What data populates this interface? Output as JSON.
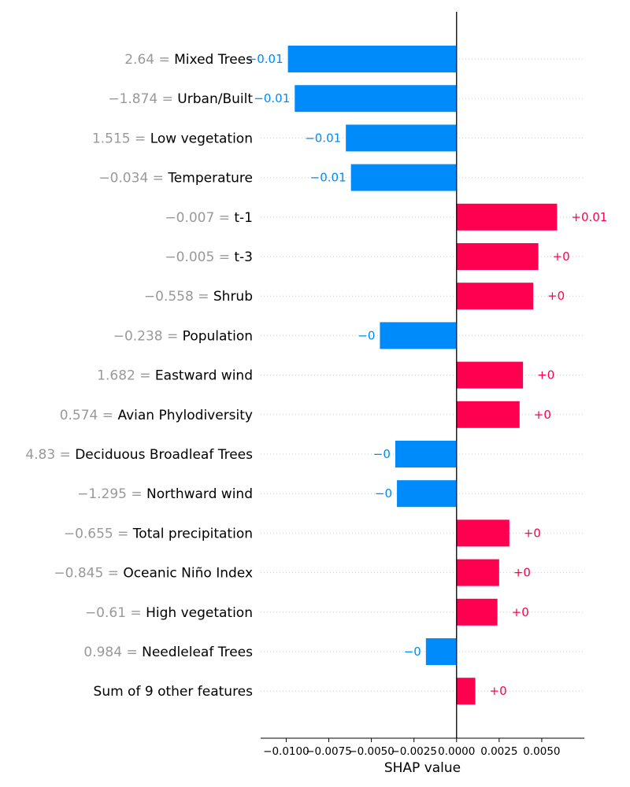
{
  "chart_data": {
    "type": "bar",
    "orientation": "horizontal",
    "xlabel": "SHAP value",
    "xlim": [
      -0.0115,
      0.0075
    ],
    "xticks": [
      -0.01,
      -0.0075,
      -0.005,
      -0.0025,
      0.0,
      0.0025,
      0.005
    ],
    "xtick_labels": [
      "−0.0100",
      "−0.0075",
      "−0.0050",
      "−0.0025",
      "0.0000",
      "0.0025",
      "0.0050"
    ],
    "colors": {
      "positive": "#ff0051",
      "negative": "#008bfb",
      "feature_value": "#999999",
      "label": "#000000"
    },
    "features": [
      {
        "value": "2.64 = ",
        "name": "Mixed Trees",
        "shap": -0.0099,
        "text": "−0.01"
      },
      {
        "value": "−1.874 = ",
        "name": "Urban/Built",
        "shap": -0.0095,
        "text": "−0.01"
      },
      {
        "value": "1.515 = ",
        "name": "Low vegetation",
        "shap": -0.0065,
        "text": "−0.01"
      },
      {
        "value": "−0.034 = ",
        "name": "Temperature",
        "shap": -0.0062,
        "text": "−0.01"
      },
      {
        "value": "−0.007 = ",
        "name": "t-1",
        "shap": 0.0059,
        "text": "+0.01"
      },
      {
        "value": "−0.005 = ",
        "name": "t-3",
        "shap": 0.0048,
        "text": "+0"
      },
      {
        "value": "−0.558 = ",
        "name": "Shrub",
        "shap": 0.0045,
        "text": "+0"
      },
      {
        "value": "−0.238 = ",
        "name": "Population",
        "shap": -0.0045,
        "text": "−0"
      },
      {
        "value": "1.682 = ",
        "name": "Eastward wind",
        "shap": 0.0039,
        "text": "+0"
      },
      {
        "value": "0.574 = ",
        "name": "Avian Phylodiversity",
        "shap": 0.0037,
        "text": "+0"
      },
      {
        "value": "4.83 = ",
        "name": "Deciduous Broadleaf Trees",
        "shap": -0.0036,
        "text": "−0"
      },
      {
        "value": "−1.295 = ",
        "name": "Northward wind",
        "shap": -0.0035,
        "text": "−0"
      },
      {
        "value": "−0.655 = ",
        "name": "Total precipitation",
        "shap": 0.0031,
        "text": "+0"
      },
      {
        "value": "−0.845 = ",
        "name": "Oceanic Niño Index",
        "shap": 0.0025,
        "text": "+0"
      },
      {
        "value": "−0.61 = ",
        "name": "High vegetation",
        "shap": 0.0024,
        "text": "+0"
      },
      {
        "value": "0.984 = ",
        "name": "Needleleaf Trees",
        "shap": -0.0018,
        "text": "−0"
      },
      {
        "value": "",
        "name": "Sum of 9 other features",
        "shap": 0.0011,
        "text": "+0"
      }
    ]
  }
}
